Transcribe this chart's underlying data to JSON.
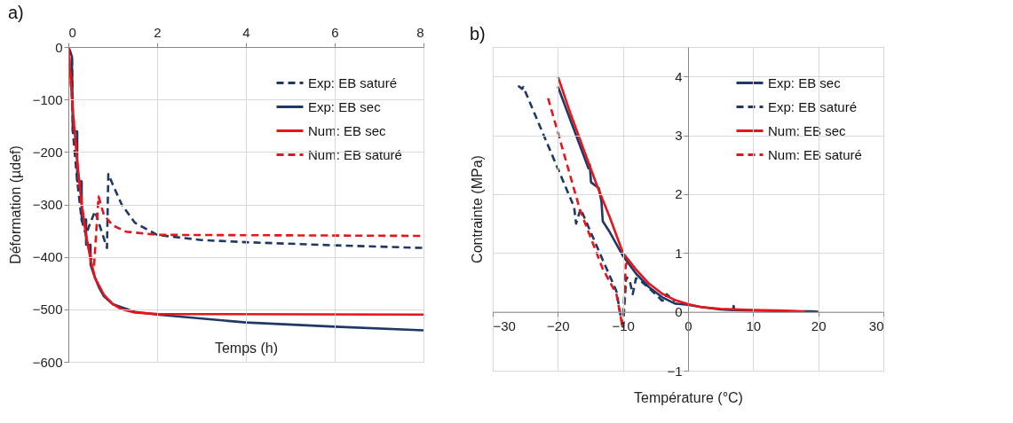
{
  "chart_data": [
    {
      "type": "line",
      "title": "a)",
      "xlabel": "Temps (h)",
      "ylabel": "Déformation (µdef)",
      "xlim": [
        0,
        8
      ],
      "ylim": [
        -600,
        0
      ],
      "xticks": [
        0,
        2,
        4,
        6,
        8
      ],
      "yticks": [
        -600,
        -500,
        -400,
        -300,
        -200,
        -100,
        0
      ],
      "grid": true,
      "legend": "top right",
      "series": [
        {
          "name": "Exp: EB saturé",
          "color": "#1f3864",
          "line_style": "dashed",
          "x": [
            0,
            0.08,
            0.1,
            0.2,
            0.3,
            0.4,
            0.45,
            0.6,
            0.87,
            0.9,
            1.0,
            1.2,
            1.5,
            2,
            3,
            4,
            6,
            8
          ],
          "values": [
            0,
            -18,
            -160,
            -256,
            -330,
            -360,
            -345,
            -313,
            -383,
            -242,
            -262,
            -300,
            -335,
            -358,
            -368,
            -372,
            -378,
            -383
          ]
        },
        {
          "name": "Exp: EB sec",
          "color": "#1f3864",
          "line_style": "solid",
          "x": [
            0,
            0.08,
            0.1,
            0.2,
            0.2,
            0.3,
            0.3,
            0.4,
            0.4,
            0.5,
            0.5,
            0.6,
            0.7,
            0.8,
            1.0,
            1.5,
            2,
            4,
            6,
            8
          ],
          "values": [
            0,
            -18,
            -161,
            -161,
            -256,
            -256,
            -329,
            -329,
            -377,
            -377,
            -415,
            -440,
            -460,
            -475,
            -490,
            -505,
            -510,
            -525,
            -533,
            -540
          ]
        },
        {
          "name": "Num: EB sec",
          "color": "#e8141a",
          "line_style": "solid",
          "x": [
            0,
            0.1,
            0.2,
            0.3,
            0.4,
            0.5,
            0.6,
            0.8,
            1,
            1.2,
            1.5,
            2,
            8
          ],
          "values": [
            0,
            -120,
            -220,
            -300,
            -360,
            -405,
            -440,
            -472,
            -490,
            -500,
            -506,
            -509,
            -510
          ]
        },
        {
          "name": "Num: EB saturé",
          "color": "#e8141a",
          "line_style": "dashed",
          "x": [
            0,
            0.1,
            0.2,
            0.3,
            0.4,
            0.5,
            0.58,
            0.68,
            0.8,
            1,
            1.3,
            2,
            8
          ],
          "values": [
            0,
            -120,
            -220,
            -300,
            -360,
            -400,
            -415,
            -285,
            -320,
            -340,
            -352,
            -358,
            -360
          ]
        }
      ]
    },
    {
      "type": "line",
      "title": "b)",
      "xlabel": "Température (°C)",
      "ylabel": "Contrainte (MPa)",
      "xlim": [
        -30,
        30
      ],
      "ylim": [
        -1,
        4.5
      ],
      "xticks": [
        -30,
        -20,
        -10,
        0,
        10,
        20,
        30
      ],
      "yticks": [
        -1,
        0,
        1,
        2,
        3,
        4
      ],
      "grid": true,
      "legend": "top right",
      "series": [
        {
          "name": "Exp: EB sec",
          "color": "#1f3864",
          "line_style": "solid",
          "x": [
            -20,
            -15.3,
            -15.1,
            -14.9,
            -13.7,
            -13.3,
            -13.1,
            -12,
            -10,
            -8,
            -6,
            -4,
            -2,
            0,
            2,
            5,
            6.9,
            7,
            7.1,
            10,
            15,
            19,
            20
          ],
          "values": [
            3.83,
            2.44,
            2.5,
            2.2,
            2.1,
            1.87,
            1.54,
            1.35,
            0.95,
            0.65,
            0.42,
            0.25,
            0.14,
            0.12,
            0.08,
            0.04,
            0.03,
            0.1,
            0.03,
            0.02,
            0.01,
            0.01,
            0
          ]
        },
        {
          "name": "Exp: EB saturé",
          "color": "#1f3864",
          "line_style": "dashed",
          "x": [
            -26.1,
            -25.5,
            -25.3,
            -17.5,
            -17.2,
            -16.5,
            -12.9,
            -11,
            -10,
            -9.5,
            -9,
            -8.5,
            -8,
            -7,
            -5,
            -4,
            -3.5,
            -3.3,
            -2
          ],
          "values": [
            3.84,
            3.79,
            3.82,
            1.78,
            1.5,
            1.75,
            0.83,
            0.35,
            -0.3,
            0.59,
            0.55,
            0.3,
            0.57,
            0.5,
            0.3,
            0.19,
            0.2,
            0.3,
            0.18
          ]
        },
        {
          "name": "Num: EB sec",
          "color": "#e8141a",
          "line_style": "solid",
          "x": [
            -20,
            -18,
            -16,
            -14,
            -12,
            -10,
            -8,
            -6,
            -4,
            -2,
            0,
            2,
            5,
            10,
            15,
            18
          ],
          "values": [
            4.0,
            3.35,
            2.75,
            2.15,
            1.6,
            1.0,
            0.72,
            0.48,
            0.31,
            0.2,
            0.13,
            0.08,
            0.05,
            0.03,
            0.02,
            0
          ]
        },
        {
          "name": "Num: EB saturé",
          "color": "#e8141a",
          "line_style": "dashed",
          "x": [
            -21.5,
            -16.6,
            -13.1,
            -11,
            -10.05,
            -9.55,
            -9
          ],
          "values": [
            3.63,
            1.73,
            0.73,
            0.3,
            -0.26,
            0.81,
            0.85
          ]
        }
      ]
    }
  ]
}
